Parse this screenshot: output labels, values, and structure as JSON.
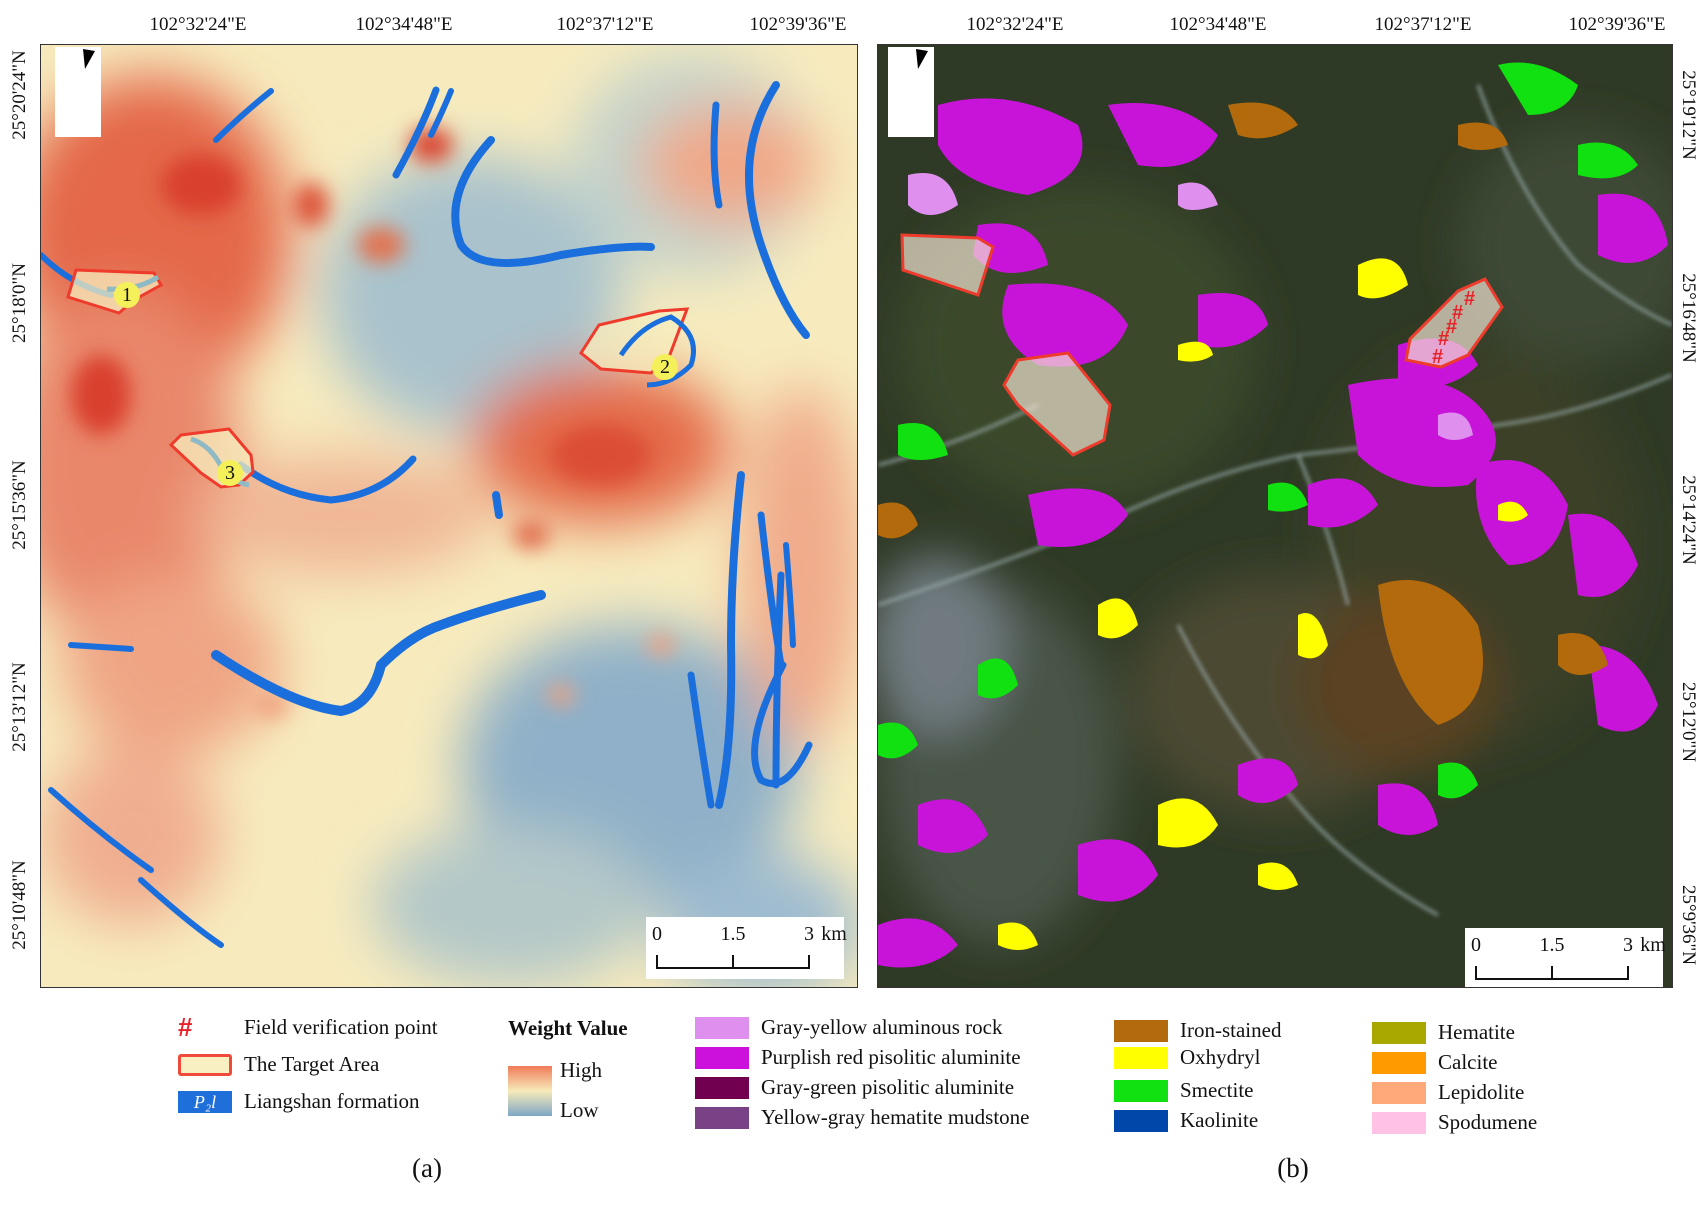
{
  "panel_a": {
    "lon_labels": [
      "102°32'24\"E",
      "102°34'48\"E",
      "102°37'12\"E",
      "102°39'36\"E"
    ],
    "lat_labels": [
      "25°20'24\"N",
      "25°18'0\"N",
      "25°15'36\"N",
      "25°13'12\"N",
      "25°10'48\"N"
    ],
    "target_labels": [
      "1",
      "2",
      "3"
    ],
    "scalebar": {
      "labels": [
        "0",
        "1.5",
        "3"
      ],
      "unit": "km"
    }
  },
  "panel_b": {
    "lon_labels": [
      "102°32'24\"E",
      "102°34'48\"E",
      "102°37'12\"E",
      "102°39'36\"E"
    ],
    "lat_labels": [
      "25°19'12\"N",
      "25°16'48\"N",
      "25°14'24\"N",
      "25°12'0\"N",
      "25°9'36\"N"
    ],
    "scalebar": {
      "labels": [
        "0",
        "1.5",
        "3"
      ],
      "unit": "km"
    },
    "field_point_symbol": "#"
  },
  "legend": {
    "general": [
      {
        "label": "Field verification point",
        "icon": "hash-marker",
        "color": "#e8222a"
      },
      {
        "label": "The Target Area",
        "icon": "polygon-outline",
        "color": "#f04a3a"
      },
      {
        "label": "Liangshan formation",
        "icon": "formation-swatch",
        "code": "P₂l",
        "color": "#1e6fd9"
      }
    ],
    "weight": {
      "title": "Weight Value",
      "high": "High",
      "low": "Low"
    },
    "minerals_col1": [
      {
        "label": "Gray-yellow aluminous rock",
        "color": "#df8fee"
      },
      {
        "label": "Purplish red pisolitic aluminite",
        "color": "#cc11dd"
      },
      {
        "label": "Gray-green pisolitic aluminite",
        "color": "#720050"
      },
      {
        "label": "Yellow-gray hematite mudstone",
        "color": "#7a4286"
      }
    ],
    "minerals_col2": [
      {
        "label": "Iron-stained",
        "color": "#b36a0c"
      },
      {
        "label": "Oxhydryl",
        "color": "#ffff00"
      },
      {
        "label": "Smectite",
        "color": "#11e011"
      },
      {
        "label": "Kaolinite",
        "color": "#0047aa"
      }
    ],
    "minerals_col3": [
      {
        "label": "Hematite",
        "color": "#a8a800"
      },
      {
        "label": "Calcite",
        "color": "#ff9b00"
      },
      {
        "label": "Lepidolite",
        "color": "#ffa87a"
      },
      {
        "label": "Spodumene",
        "color": "#ffc2e6"
      }
    ]
  },
  "captions": [
    "(a)",
    "(b)"
  ]
}
